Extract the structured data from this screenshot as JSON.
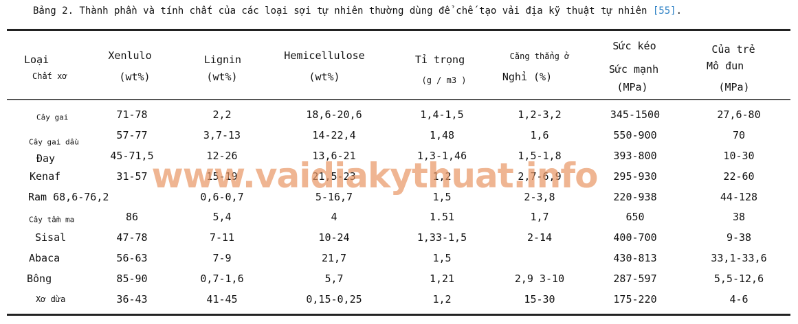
{
  "caption": {
    "text": "Bảng 2. Thành phần và tính chất của các loại sợi tự nhiên thường dùng để chế tạo vải địa kỹ thuật tự nhiên ",
    "ref": "[55]",
    "end": "."
  },
  "watermark": "www.vaidiakythuat.info",
  "colors": {
    "ref_link": "#2a7fc4",
    "watermark": "#e89664"
  },
  "header": {
    "fiber": [
      "Loại",
      "Chất xơ"
    ],
    "cellulose": [
      "Xenlulo",
      "(wt%)"
    ],
    "lignin": [
      "Lignin",
      "(wt%)"
    ],
    "hemicellulose": [
      "Hemicellulose",
      "(wt%)"
    ],
    "density": [
      "Tỉ trọng",
      "(g / m3 )"
    ],
    "strain": [
      "Căng thẳng ở",
      "Nghỉ (%)"
    ],
    "strength": [
      "Sức kéo",
      "Sức mạnh",
      "(MPa)"
    ],
    "modulus": [
      "Của trẻ",
      "Mô đun",
      "(MPa)"
    ]
  },
  "rows": [
    [
      "Cây gai",
      "71-78",
      "2,2",
      "18,6-20,6",
      "1,4-1,5",
      "1,2-3,2",
      "345-1500",
      "27,6-80"
    ],
    [
      "Cây gai dầu",
      "57-77",
      "3,7-13",
      "14-22,4",
      "1,48",
      "1,6",
      "550-900",
      "70"
    ],
    [
      "Đay",
      "45-71,5",
      "12-26",
      "13,6-21",
      "1,3-1,46",
      "1,5-1,8",
      "393-800",
      "10-30"
    ],
    [
      "Kenaf",
      "31-57",
      "15-19",
      "21,5-23",
      "1,2",
      "2,7-6,9",
      "295-930",
      "22-60"
    ],
    [
      "Ram 68,6-76,2",
      "",
      "0,6-0,7",
      "5-16,7",
      "1,5",
      "2-3,8",
      "220-938",
      "44-128"
    ],
    [
      "Cây tầm ma",
      "86",
      "5,4",
      "4",
      "1.51",
      "1,7",
      "650",
      "38"
    ],
    [
      "Sisal",
      "47-78",
      "7-11",
      "10-24",
      "1,33-1,5",
      "2-14",
      "400-700",
      "9-38"
    ],
    [
      "Abaca",
      "56-63",
      "7-9",
      "21,7",
      "1,5",
      "",
      "430-813",
      "33,1-33,6"
    ],
    [
      "Bông",
      "85-90",
      "0,7-1,6",
      "5,7",
      "1,21",
      "2,9 3-10",
      "287-597",
      "5,5-12,6"
    ],
    [
      "Xơ dừa",
      "36-43",
      "41-45",
      "0,15-0,25",
      "1,2",
      "15-30",
      "175-220",
      "4-6"
    ]
  ]
}
